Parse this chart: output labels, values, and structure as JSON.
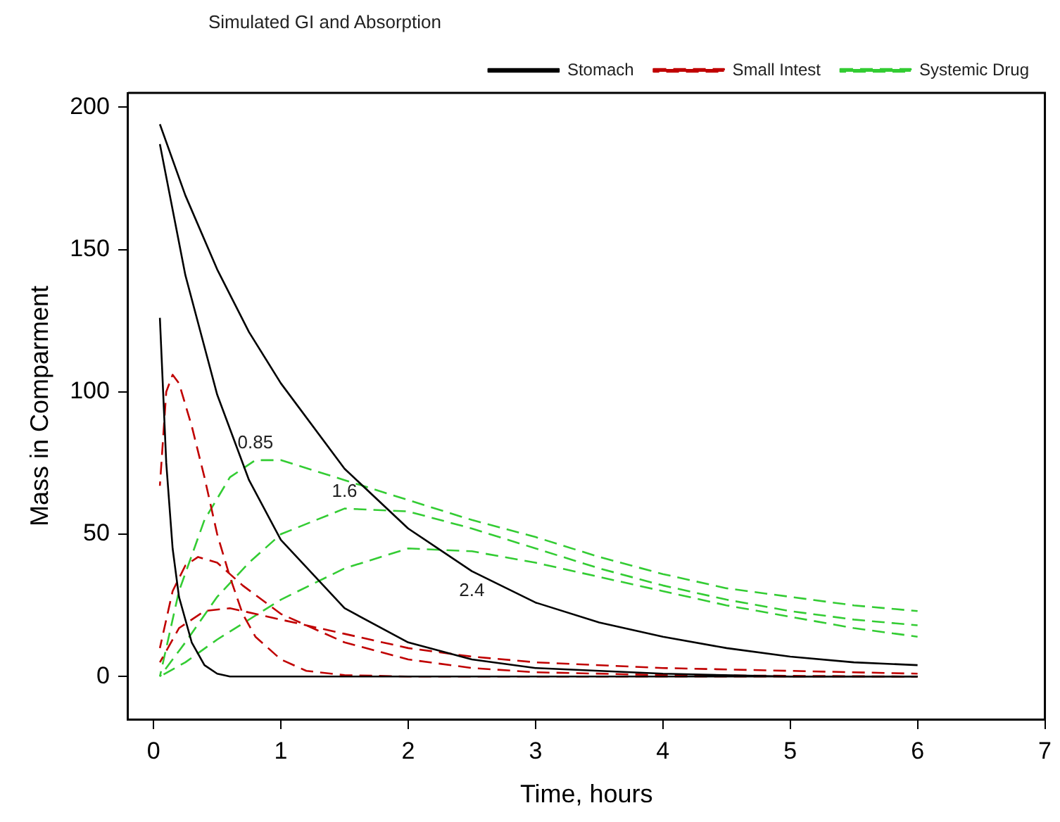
{
  "chart_data": {
    "type": "line",
    "title": "Simulated GI and Absorption",
    "xlabel": "Time, hours",
    "ylabel": "Mass in Comparment",
    "xlim": [
      -0.2,
      7
    ],
    "xticks": [
      0,
      1,
      2,
      3,
      4,
      5,
      6,
      7
    ],
    "ylim": [
      -15,
      205
    ],
    "yticks": [
      0,
      50,
      100,
      150,
      200
    ],
    "grid": false,
    "legend": "top right",
    "marker": "none",
    "annotations": [
      {
        "text": "0.85",
        "x": 0.8,
        "y": 76
      },
      {
        "text": "1.6",
        "x": 1.5,
        "y": 59
      },
      {
        "text": "2.4",
        "x": 2.5,
        "y": 37
      }
    ],
    "series": [
      {
        "name": "Stomach",
        "color": "#000000",
        "line_style": "solid",
        "x": [
          0.05,
          0.1,
          0.15,
          0.2,
          0.3,
          0.4,
          0.5,
          0.6,
          6
        ],
        "values": [
          126,
          75,
          45,
          28,
          12,
          4,
          1,
          0,
          0
        ]
      },
      {
        "color": "#000000",
        "line_style": "solid",
        "x": [
          0.05,
          0.25,
          0.5,
          0.75,
          1,
          1.5,
          2,
          2.5,
          3,
          4,
          5,
          6
        ],
        "values": [
          187,
          141,
          99,
          69,
          48,
          24,
          12,
          6,
          3,
          1,
          0,
          0
        ]
      },
      {
        "color": "#000000",
        "line_style": "solid",
        "x": [
          0.05,
          0.25,
          0.5,
          0.75,
          1,
          1.5,
          2,
          2.5,
          3,
          3.5,
          4,
          4.5,
          5,
          5.5,
          6
        ],
        "values": [
          194,
          169,
          143,
          121,
          103,
          73,
          52,
          37,
          26,
          19,
          14,
          10,
          7,
          5,
          4
        ]
      },
      {
        "name": "Small Intest",
        "color": "#c00000",
        "line_style": "dashed",
        "x": [
          0.05,
          0.1,
          0.15,
          0.2,
          0.3,
          0.4,
          0.5,
          0.6,
          0.7,
          0.8,
          1,
          1.2,
          1.5,
          2,
          6
        ],
        "values": [
          67,
          100,
          106,
          103,
          88,
          70,
          50,
          35,
          22,
          14,
          6,
          2,
          0.5,
          0,
          0
        ]
      },
      {
        "color": "#c00000",
        "line_style": "dashed",
        "x": [
          0.05,
          0.15,
          0.25,
          0.35,
          0.5,
          0.7,
          1,
          1.5,
          2,
          2.5,
          3,
          4,
          6
        ],
        "values": [
          10,
          30,
          39,
          42,
          40,
          32,
          22,
          12,
          6,
          3,
          1.5,
          0.5,
          0
        ]
      },
      {
        "color": "#c00000",
        "line_style": "dashed",
        "x": [
          0.05,
          0.2,
          0.4,
          0.6,
          0.8,
          1,
          1.5,
          2,
          2.5,
          3,
          4,
          5,
          6
        ],
        "values": [
          5,
          17,
          23,
          24,
          22,
          20,
          15,
          10,
          7,
          5,
          3,
          2,
          1
        ]
      },
      {
        "name": "Systemic Drug",
        "color": "#33cc33",
        "line_style": "dashed",
        "x": [
          0.05,
          0.2,
          0.4,
          0.6,
          0.8,
          1,
          1.5,
          2,
          2.5,
          3,
          3.5,
          4,
          4.5,
          5,
          5.5,
          6
        ],
        "values": [
          0,
          30,
          55,
          70,
          76,
          76,
          69,
          62,
          55,
          49,
          42,
          36,
          31,
          28,
          25,
          23
        ]
      },
      {
        "color": "#33cc33",
        "line_style": "dashed",
        "x": [
          0.05,
          0.25,
          0.5,
          0.75,
          1,
          1.5,
          2,
          2.5,
          3,
          3.5,
          4,
          4.5,
          5,
          5.5,
          6
        ],
        "values": [
          0,
          12,
          28,
          40,
          50,
          59,
          58,
          52,
          45,
          38,
          32,
          27,
          23,
          20,
          18
        ]
      },
      {
        "color": "#33cc33",
        "line_style": "dashed",
        "x": [
          0.05,
          0.25,
          0.5,
          1,
          1.5,
          2,
          2.5,
          3,
          3.5,
          4,
          4.5,
          5,
          5.5,
          6
        ],
        "values": [
          0,
          5,
          13,
          27,
          38,
          45,
          44,
          40,
          35,
          30,
          25,
          21,
          17,
          14
        ]
      }
    ]
  }
}
